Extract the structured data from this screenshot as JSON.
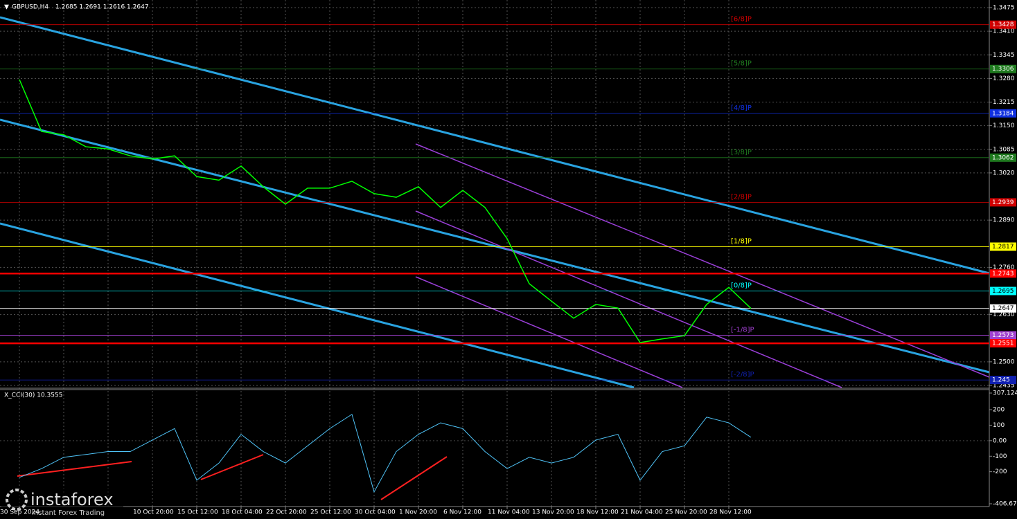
{
  "chart_data": [
    {
      "type": "line",
      "title": "GBPUSD,H4",
      "subtitle": "1.2685 1.2691 1.2616 1.2647",
      "categories": [
        "30 Sep 2024",
        null,
        null,
        null,
        null,
        null,
        "10 Oct 20:00",
        null,
        "15 Oct 12:00",
        null,
        "18 Oct 04:00",
        null,
        "22 Oct 20:00",
        null,
        "25 Oct 12:00",
        null,
        "30 Oct 04:00",
        null,
        "1 Nov 20:00",
        null,
        "6 Nov 12:00",
        null,
        "11 Nov 04:00",
        null,
        "13 Nov 20:00",
        null,
        "18 Nov 12:00",
        null,
        "21 Nov 04:00",
        null,
        "25 Nov 20:00",
        null,
        "28 Nov 12:00",
        null
      ],
      "values": [
        1.3277,
        1.3134,
        1.3125,
        1.3092,
        1.3086,
        1.3067,
        1.3058,
        1.3067,
        1.301,
        1.3,
        1.3039,
        1.2982,
        1.2934,
        1.2978,
        1.2978,
        1.2997,
        1.2963,
        1.2953,
        1.2982,
        1.2925,
        1.2972,
        1.2925,
        1.2839,
        1.2715,
        1.2667,
        1.262,
        1.2658,
        1.2648,
        1.2553,
        1.2563,
        1.2572,
        1.2658,
        1.2705,
        1.2647
      ],
      "color": "#00ff00",
      "ylim": [
        1.2435,
        1.3475
      ],
      "yticks": [
        1.3475,
        {
          "value": 1.341,
          "label": "1.3410"
        },
        1.3345,
        {
          "value": 1.328,
          "label": "1.3280"
        },
        1.3215,
        {
          "value": 1.315,
          "label": "1.3150"
        },
        1.3085,
        {
          "value": 1.302,
          "label": "1.3020"
        },
        {
          "value": 1.289,
          "label": "1.2890"
        },
        {
          "value": 1.276,
          "label": "1.2760"
        },
        {
          "value": 1.263,
          "label": "1.2630"
        },
        {
          "value": 1.25,
          "label": "1.2500"
        },
        1.2435
      ],
      "grid": true,
      "levels": [
        {
          "value": 1.3428,
          "label": "[6/8]P",
          "color": "#d00000"
        },
        {
          "value": 1.3306,
          "label": "[5/8]P",
          "color": "#1f7a1f"
        },
        {
          "value": 1.3184,
          "label": "[4/8]P",
          "color": "#1030e0"
        },
        {
          "value": 1.3062,
          "label": "[3/8]P",
          "color": "#1f7a1f"
        },
        {
          "value": 1.2939,
          "label": "[2/8]P",
          "color": "#d00000"
        },
        {
          "value": 1.2817,
          "label": "[1/8]P",
          "color": "#ffff00"
        },
        {
          "value": 1.2743,
          "color": "#ff0000",
          "thick": true
        },
        {
          "value": 1.2695,
          "label": "[0/8]P",
          "color": "#00ffff"
        },
        {
          "value": 1.2647,
          "color": "#ffffff"
        },
        {
          "value": 1.2573,
          "label": "[-1/8]P",
          "color": "#a040d0"
        },
        {
          "value": 1.2551,
          "color": "#ff0000",
          "thick": true
        },
        {
          "value": 1.245,
          "label": "[-2/8]P",
          "color": "#1020b0"
        }
      ]
    },
    {
      "type": "line",
      "title": "X_CCI(30) 10.3555",
      "values": [
        -237,
        -180,
        -107,
        -89,
        -70,
        -70,
        4,
        78,
        -255,
        -144,
        41,
        -70,
        -144,
        -33,
        78,
        170,
        -330,
        -70,
        41,
        115,
        78,
        -70,
        -180,
        -107,
        -144,
        -107,
        4,
        41,
        -255,
        -70,
        -33,
        152,
        115,
        22
      ],
      "color": "#4fc3f7",
      "ylim": [
        -406.677,
        307.1248
      ],
      "yticks": [
        307.1248,
        200,
        100,
        {
          "value": 0,
          "label": "0.00"
        },
        -100,
        -200,
        -406.677
      ]
    }
  ],
  "watermark": {
    "brand": "instaforex",
    "tagline": "Instant Forex Trading"
  }
}
